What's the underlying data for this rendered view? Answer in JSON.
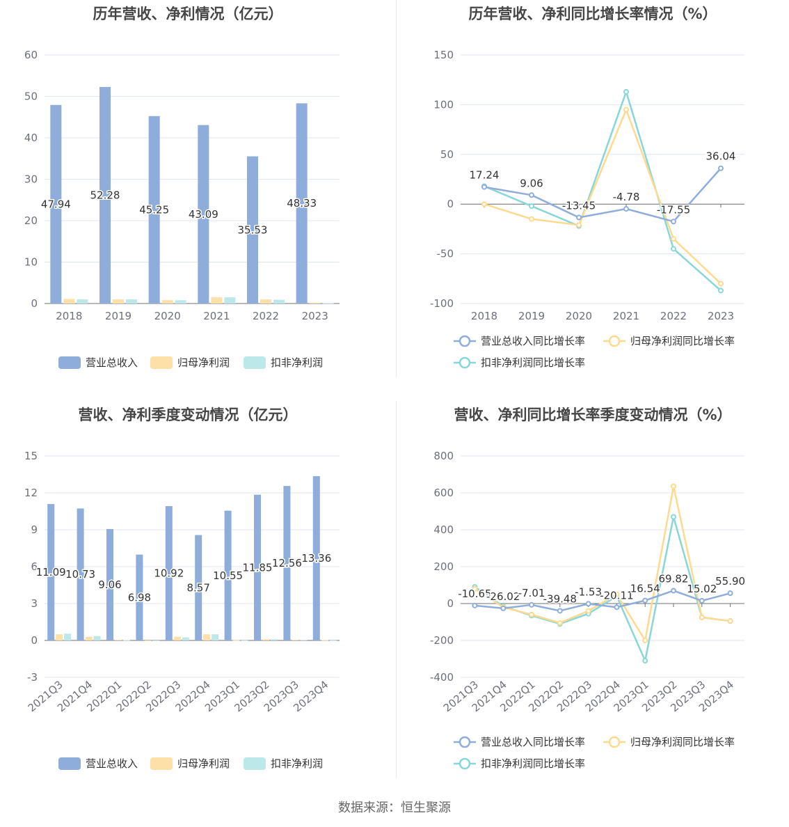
{
  "colors": {
    "revenue": "#8eadda",
    "net_profit": "#fddfa8",
    "deducted_profit": "#bde8ea",
    "revenue_line": "#8eadda",
    "net_profit_line": "#ffd98e",
    "deducted_line": "#87d6d8"
  },
  "source": "数据来源：恒生聚源",
  "chart_data": [
    {
      "id": "annual-amount",
      "type": "bar",
      "title": "历年营收、净利情况（亿元）",
      "categories": [
        "2018",
        "2019",
        "2020",
        "2021",
        "2022",
        "2023"
      ],
      "ylim": [
        0,
        60
      ],
      "yticks": [
        0,
        10,
        20,
        30,
        40,
        50,
        60
      ],
      "legend_position": "bottom",
      "grid": true,
      "series": [
        {
          "name": "营业总收入",
          "color": "#8eadda",
          "values": [
            47.94,
            52.28,
            45.25,
            43.09,
            35.53,
            48.33
          ],
          "labels": [
            "47.94",
            "52.28",
            "45.25",
            "43.09",
            "35.53",
            "48.33"
          ]
        },
        {
          "name": "归母净利润",
          "color": "#fddfa8",
          "values": [
            1.1,
            1.0,
            0.8,
            1.5,
            1.0,
            0.2
          ]
        },
        {
          "name": "扣非净利润",
          "color": "#bde8ea",
          "values": [
            1.0,
            1.0,
            0.8,
            1.5,
            0.9,
            0.1
          ]
        }
      ]
    },
    {
      "id": "annual-growth",
      "type": "line",
      "title": "历年营收、净利同比增长率情况（%）",
      "categories": [
        "2018",
        "2019",
        "2020",
        "2021",
        "2022",
        "2023"
      ],
      "ylim": [
        -100,
        150
      ],
      "yticks": [
        -100,
        -50,
        0,
        50,
        100,
        150
      ],
      "legend_position": "bottom",
      "grid": true,
      "series": [
        {
          "name": "营业总收入同比增长率",
          "color": "#8eadda",
          "values": [
            17.24,
            9.06,
            -13.45,
            -4.78,
            -17.55,
            36.04
          ],
          "labels": [
            "17.24",
            "9.06",
            "-13.45",
            "-4.78",
            "-17.55",
            "36.04"
          ]
        },
        {
          "name": "归母净利润同比增长率",
          "color": "#ffd98e",
          "values": [
            0,
            -15,
            -21,
            95,
            -35,
            -80
          ]
        },
        {
          "name": "扣非净利润同比增长率",
          "color": "#87d6d8",
          "values": [
            18,
            -2,
            -22,
            113,
            -45,
            -87
          ]
        }
      ]
    },
    {
      "id": "quarter-amount",
      "type": "bar",
      "title": "营收、净利季度变动情况（亿元）",
      "categories": [
        "2021Q3",
        "2021Q4",
        "2022Q1",
        "2022Q2",
        "2022Q3",
        "2022Q4",
        "2023Q1",
        "2023Q2",
        "2023Q3",
        "2023Q4"
      ],
      "ylim": [
        -3,
        15
      ],
      "yticks": [
        -3,
        0,
        3,
        6,
        9,
        12,
        15
      ],
      "legend_position": "bottom",
      "grid": true,
      "series": [
        {
          "name": "营业总收入",
          "color": "#8eadda",
          "values": [
            11.09,
            10.73,
            9.06,
            6.98,
            10.92,
            8.57,
            10.55,
            11.85,
            12.56,
            13.36
          ],
          "labels": [
            "11.09",
            "10.73",
            "9.06",
            "6.98",
            "10.92",
            "8.57",
            "10.55",
            "11.85",
            "12.56",
            "13.36"
          ]
        },
        {
          "name": "归母净利润",
          "color": "#fddfa8",
          "values": [
            0.5,
            0.3,
            0.05,
            -0.02,
            0.3,
            0.5,
            0.02,
            0.1,
            0.05,
            0.03
          ]
        },
        {
          "name": "扣非净利润",
          "color": "#bde8ea",
          "values": [
            0.55,
            0.35,
            0.03,
            -0.03,
            0.25,
            0.5,
            0.01,
            0.1,
            0.04,
            0.01
          ]
        }
      ]
    },
    {
      "id": "quarter-growth",
      "type": "line",
      "title": "营收、净利同比增长率季度变动情况（%）",
      "categories": [
        "2021Q3",
        "2021Q4",
        "2022Q1",
        "2022Q2",
        "2022Q3",
        "2022Q4",
        "2023Q1",
        "2023Q2",
        "2023Q3",
        "2023Q4"
      ],
      "ylim": [
        -400,
        800
      ],
      "yticks": [
        -400,
        -200,
        0,
        200,
        400,
        600,
        800
      ],
      "legend_position": "bottom",
      "grid": true,
      "series": [
        {
          "name": "营业总收入同比增长率",
          "color": "#8eadda",
          "values": [
            -10.65,
            -26.02,
            -7.01,
            -39.48,
            -1.53,
            -20.11,
            16.54,
            69.82,
            15.02,
            55.9
          ],
          "labels": [
            "-10.65",
            "-26.02",
            "-7.01",
            "-39.48",
            "-1.53",
            "-20.11",
            "16.54",
            "69.82",
            "15.02",
            "55.90"
          ]
        },
        {
          "name": "归母净利润同比增长率",
          "color": "#ffd98e",
          "values": [
            80,
            -20,
            -60,
            -105,
            -40,
            50,
            -200,
            635,
            -75,
            -95
          ]
        },
        {
          "name": "扣非净利润同比增长率",
          "color": "#87d6d8",
          "values": [
            90,
            -15,
            -65,
            -110,
            -55,
            40,
            -310,
            470,
            -75,
            -95
          ]
        }
      ]
    }
  ]
}
